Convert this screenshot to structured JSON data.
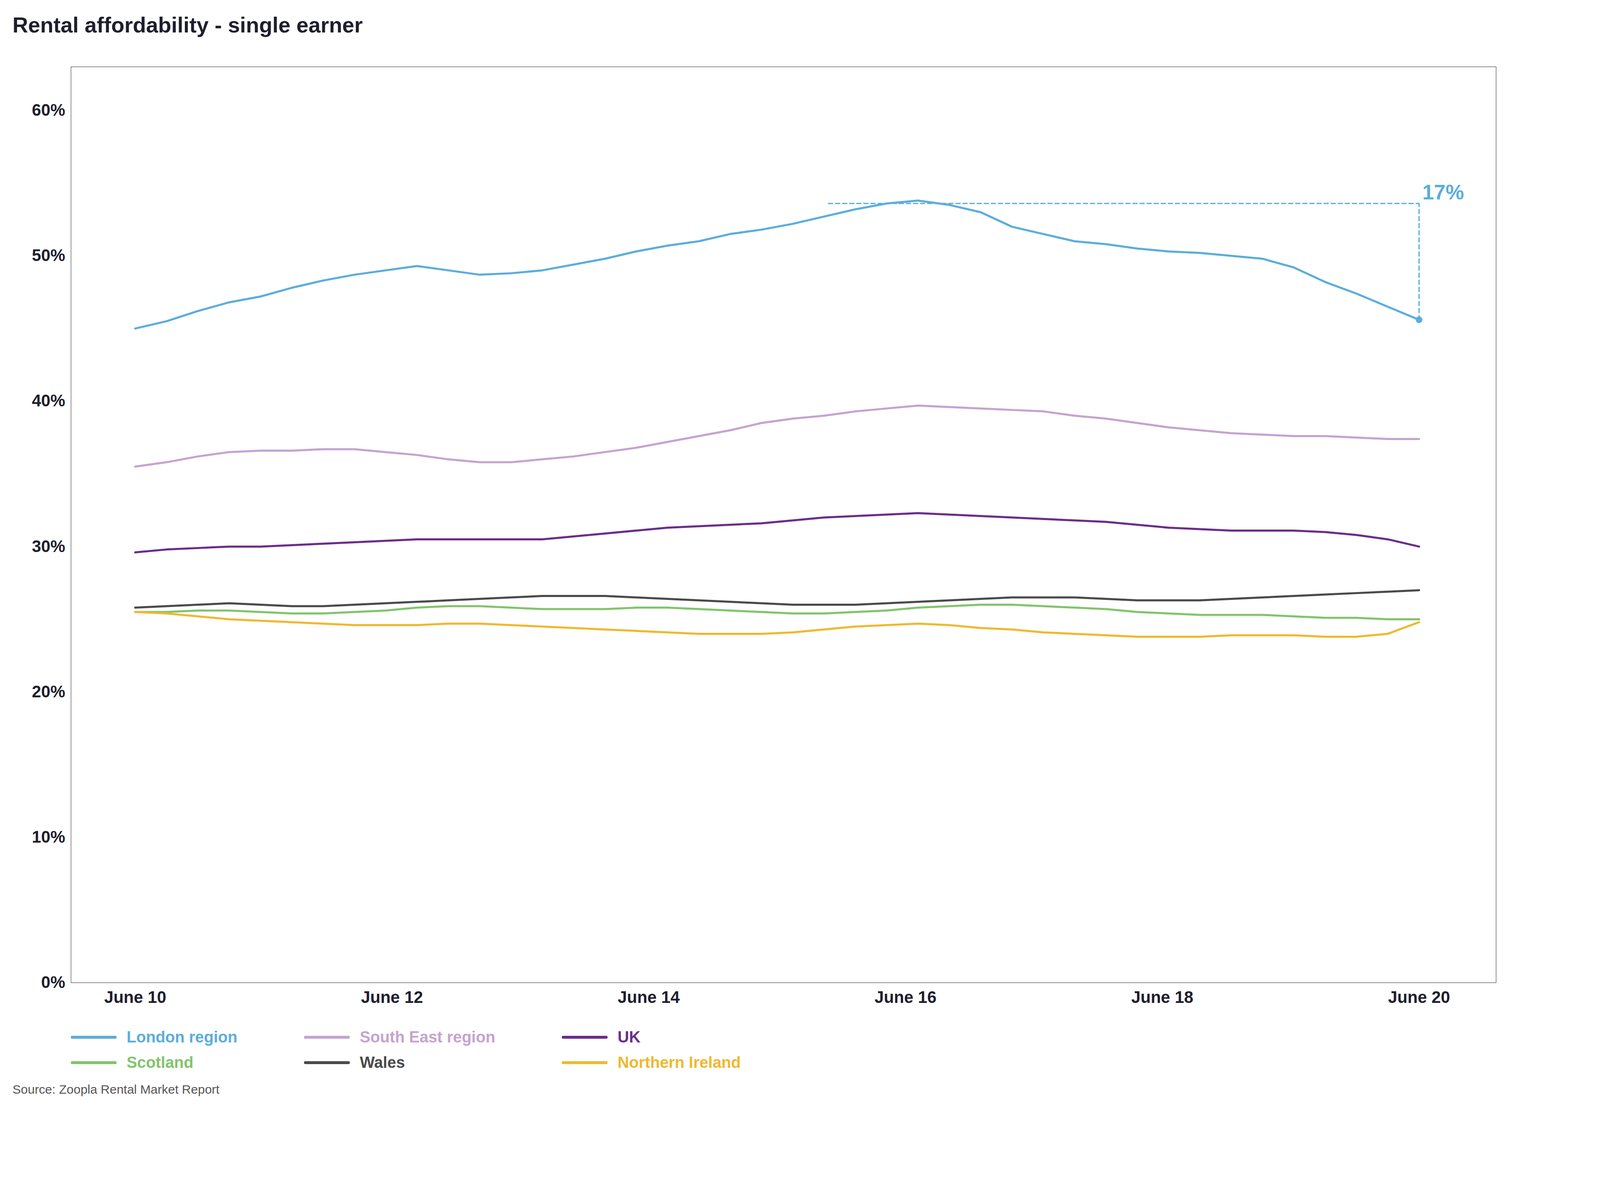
{
  "chart_data": {
    "type": "line",
    "title": "Rental affordability - single earner",
    "source": "Source: Zoopla Rental Market Report",
    "x": [
      2010,
      2010.243902,
      2010.487805,
      2010.731707,
      2010.97561,
      2011.219512,
      2011.463415,
      2011.707317,
      2011.95122,
      2012.195122,
      2012.439024,
      2012.682927,
      2012.926829,
      2013.170732,
      2013.414634,
      2013.658537,
      2013.902439,
      2014.146341,
      2014.390244,
      2014.634146,
      2014.878049,
      2015.121951,
      2015.365854,
      2015.609756,
      2015.853659,
      2016.097561,
      2016.341463,
      2016.585366,
      2016.829268,
      2017.073171,
      2017.317073,
      2017.560976,
      2017.804878,
      2018.04878,
      2018.292683,
      2018.536585,
      2018.780488,
      2019.02439,
      2019.268293,
      2019.512195,
      2019.756098,
      2020
    ],
    "xlim": [
      2009.5,
      2020.6
    ],
    "xticks": [
      {
        "value": 2010,
        "label": "June 10"
      },
      {
        "value": 2012,
        "label": "June 12"
      },
      {
        "value": 2014,
        "label": "June 14"
      },
      {
        "value": 2016,
        "label": "June 16"
      },
      {
        "value": 2018,
        "label": "June 18"
      },
      {
        "value": 2020,
        "label": "June 20"
      }
    ],
    "ylim": [
      0.0,
      0.63
    ],
    "yticks": [
      {
        "value": 0.0,
        "label": "0%"
      },
      {
        "value": 0.1,
        "label": "10%"
      },
      {
        "value": 0.2,
        "label": "20%"
      },
      {
        "value": 0.3,
        "label": "30%"
      },
      {
        "value": 0.4,
        "label": "40%"
      },
      {
        "value": 0.5,
        "label": "50%"
      },
      {
        "value": 0.6,
        "label": "60%"
      }
    ],
    "grid": false,
    "legend": "bottom",
    "series": [
      {
        "name": "London region",
        "color": "#5BADDC",
        "values": [
          0.45,
          0.455,
          0.462,
          0.468,
          0.472,
          0.478,
          0.483,
          0.487,
          0.49,
          0.493,
          0.49,
          0.487,
          0.488,
          0.49,
          0.494,
          0.498,
          0.503,
          0.507,
          0.51,
          0.515,
          0.518,
          0.522,
          0.527,
          0.532,
          0.536,
          0.538,
          0.535,
          0.53,
          0.52,
          0.515,
          0.51,
          0.508,
          0.505,
          0.503,
          0.502,
          0.5,
          0.498,
          0.492,
          0.482,
          0.474,
          0.465,
          0.456
        ]
      },
      {
        "name": "South East region",
        "color": "#C5A3D0",
        "values": [
          0.355,
          0.358,
          0.362,
          0.365,
          0.366,
          0.366,
          0.367,
          0.367,
          0.365,
          0.363,
          0.36,
          0.358,
          0.358,
          0.36,
          0.362,
          0.365,
          0.368,
          0.372,
          0.376,
          0.38,
          0.385,
          0.388,
          0.39,
          0.393,
          0.395,
          0.397,
          0.396,
          0.395,
          0.394,
          0.393,
          0.39,
          0.388,
          0.385,
          0.382,
          0.38,
          0.378,
          0.377,
          0.376,
          0.376,
          0.375,
          0.374,
          0.374
        ]
      },
      {
        "name": "UK",
        "color": "#6B2D8B",
        "values": [
          0.296,
          0.298,
          0.299,
          0.3,
          0.3,
          0.301,
          0.302,
          0.303,
          0.304,
          0.305,
          0.305,
          0.305,
          0.305,
          0.305,
          0.307,
          0.309,
          0.311,
          0.313,
          0.314,
          0.315,
          0.316,
          0.318,
          0.32,
          0.321,
          0.322,
          0.323,
          0.322,
          0.321,
          0.32,
          0.319,
          0.318,
          0.317,
          0.315,
          0.313,
          0.312,
          0.311,
          0.311,
          0.311,
          0.31,
          0.308,
          0.305,
          0.3
        ]
      },
      {
        "name": "Scotland",
        "color": "#82C46C",
        "values": [
          0.255,
          0.255,
          0.256,
          0.256,
          0.255,
          0.254,
          0.254,
          0.255,
          0.256,
          0.258,
          0.259,
          0.259,
          0.258,
          0.257,
          0.257,
          0.257,
          0.258,
          0.258,
          0.257,
          0.256,
          0.255,
          0.254,
          0.254,
          0.255,
          0.256,
          0.258,
          0.259,
          0.26,
          0.26,
          0.259,
          0.258,
          0.257,
          0.255,
          0.254,
          0.253,
          0.253,
          0.253,
          0.252,
          0.251,
          0.251,
          0.25,
          0.25
        ]
      },
      {
        "name": "Wales",
        "color": "#4A4A4A",
        "values": [
          0.258,
          0.259,
          0.26,
          0.261,
          0.26,
          0.259,
          0.259,
          0.26,
          0.261,
          0.262,
          0.263,
          0.264,
          0.265,
          0.266,
          0.266,
          0.266,
          0.265,
          0.264,
          0.263,
          0.262,
          0.261,
          0.26,
          0.26,
          0.26,
          0.261,
          0.262,
          0.263,
          0.264,
          0.265,
          0.265,
          0.265,
          0.264,
          0.263,
          0.263,
          0.263,
          0.264,
          0.265,
          0.266,
          0.267,
          0.268,
          0.269,
          0.27
        ]
      },
      {
        "name": "Northern Ireland",
        "color": "#F0B830",
        "values": [
          0.255,
          0.254,
          0.252,
          0.25,
          0.249,
          0.248,
          0.247,
          0.246,
          0.246,
          0.246,
          0.247,
          0.247,
          0.246,
          0.245,
          0.244,
          0.243,
          0.242,
          0.241,
          0.24,
          0.24,
          0.24,
          0.241,
          0.243,
          0.245,
          0.246,
          0.247,
          0.246,
          0.244,
          0.243,
          0.241,
          0.24,
          0.239,
          0.238,
          0.238,
          0.238,
          0.239,
          0.239,
          0.239,
          0.238,
          0.238,
          0.24,
          0.248
        ]
      }
    ],
    "annotations": [
      {
        "text": "17%",
        "color": "#5BADDC",
        "peak_x": 2015.4,
        "peak_y": 0.536,
        "end_x": 2020.0,
        "end_y": 0.456
      }
    ]
  }
}
